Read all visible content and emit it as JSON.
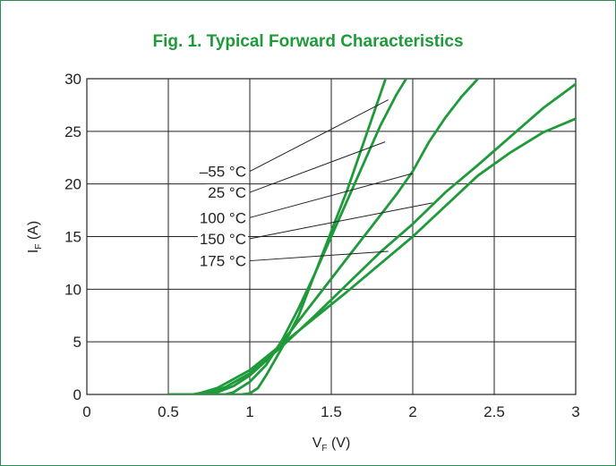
{
  "chart_data": {
    "type": "line",
    "title": "Fig. 1. Typical Forward Characteristics",
    "xlabel_main": "V",
    "xlabel_sub": "F",
    "xlabel_unit": " (V)",
    "ylabel_main": "I",
    "ylabel_sub": "F",
    "ylabel_unit": " (A)",
    "xlim": [
      0,
      3
    ],
    "ylim": [
      0,
      30
    ],
    "xticks": [
      "0",
      "0.5",
      "1",
      "1.5",
      "2",
      "2.5",
      "3"
    ],
    "yticks": [
      "0",
      "5",
      "10",
      "15",
      "20",
      "25",
      "30"
    ],
    "grid": true,
    "colors": {
      "curve": "#1f9a3a",
      "grid": "#222222",
      "frame": "#2e8b57"
    },
    "series": [
      {
        "name": "–55 °C",
        "x": [
          0.5,
          0.95,
          1.0,
          1.05,
          1.1,
          1.2,
          1.3,
          1.4,
          1.5,
          1.6,
          1.7,
          1.8,
          1.9
        ],
        "y": [
          0,
          0,
          0.1,
          0.6,
          1.8,
          4.5,
          7.5,
          11.5,
          15.5,
          19.5,
          24.0,
          28.5,
          33.0
        ]
      },
      {
        "name": "25 °C",
        "x": [
          0.5,
          0.85,
          0.9,
          1.0,
          1.1,
          1.2,
          1.3,
          1.4,
          1.5,
          1.6,
          1.7,
          1.8,
          1.9,
          1.98
        ],
        "y": [
          0,
          0,
          0.2,
          1.2,
          2.8,
          5.2,
          8.2,
          11.5,
          15.0,
          18.5,
          22.0,
          25.5,
          28.5,
          30.5
        ]
      },
      {
        "name": "100 °C",
        "x": [
          0.5,
          0.75,
          0.8,
          0.9,
          1.0,
          1.1,
          1.2,
          1.3,
          1.4,
          1.5,
          1.6,
          1.7,
          1.8,
          1.9,
          2.0,
          2.1,
          2.2,
          2.3,
          2.4
        ],
        "y": [
          0,
          0,
          0.2,
          0.8,
          1.8,
          3.2,
          5.0,
          7.0,
          9.0,
          11.0,
          13.0,
          15.0,
          17.0,
          19.0,
          21.2,
          24.0,
          26.3,
          28.3,
          30.0
        ]
      },
      {
        "name": "150 °C",
        "x": [
          0.5,
          0.7,
          0.75,
          0.85,
          1.0,
          1.1,
          1.2,
          1.4,
          1.6,
          1.8,
          2.0,
          2.2,
          2.4,
          2.6,
          2.8,
          3.0
        ],
        "y": [
          0,
          0,
          0.2,
          0.7,
          2.0,
          3.3,
          4.6,
          7.5,
          10.5,
          13.5,
          16.2,
          19.2,
          21.8,
          24.5,
          27.2,
          29.5
        ]
      },
      {
        "name": "175 °C",
        "x": [
          0.5,
          0.65,
          0.7,
          0.8,
          1.0,
          1.2,
          1.4,
          1.6,
          1.8,
          2.0,
          2.2,
          2.4,
          2.6,
          2.8,
          3.0
        ],
        "y": [
          0,
          0,
          0.15,
          0.6,
          2.3,
          4.8,
          7.3,
          9.8,
          12.4,
          15.0,
          17.9,
          20.8,
          23.0,
          24.9,
          26.2
        ]
      }
    ],
    "leaders": [
      {
        "from": [
          1.0,
          21.2
        ],
        "to": [
          1.85,
          28.0
        ]
      },
      {
        "from": [
          1.0,
          19.2
        ],
        "to": [
          1.83,
          24.0
        ]
      },
      {
        "from": [
          1.0,
          16.8
        ],
        "to": [
          2.0,
          21.0
        ]
      },
      {
        "from": [
          1.0,
          14.8
        ],
        "to": [
          2.12,
          18.2
        ]
      },
      {
        "from": [
          1.0,
          12.7
        ],
        "to": [
          1.85,
          13.6
        ]
      }
    ]
  }
}
